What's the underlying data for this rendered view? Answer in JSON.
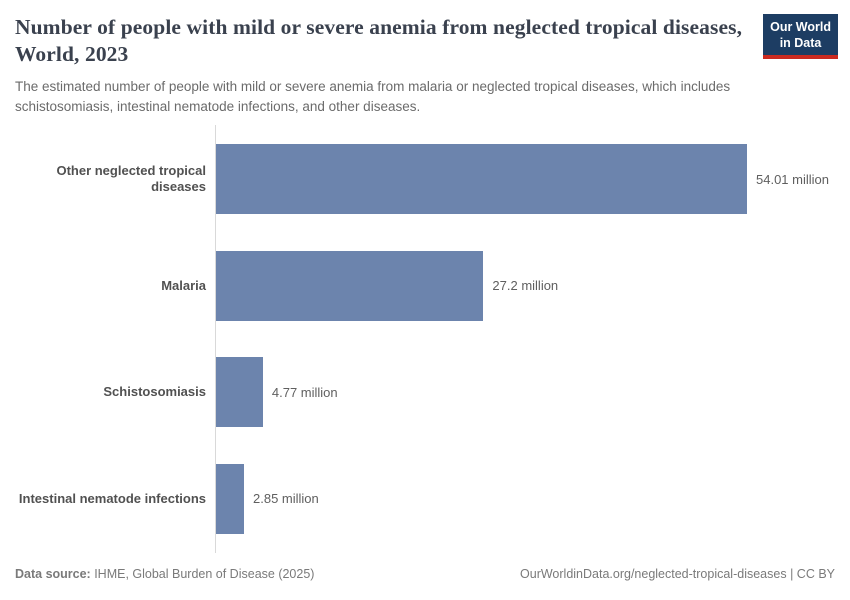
{
  "header": {
    "title": "Number of people with mild or severe anemia from neglected tropical diseases, World, 2023",
    "subtitle": "The estimated number of people with mild or severe anemia from malaria or neglected tropical diseases, which includes schistosomiasis, intestinal nematode infections, and other diseases.",
    "logo": {
      "line1": "Our World",
      "line2": "in Data"
    }
  },
  "chart_data": {
    "type": "bar",
    "orientation": "horizontal",
    "title": "Number of people with mild or severe anemia from neglected tropical diseases, World, 2023",
    "categories": [
      "Other neglected tropical diseases",
      "Malaria",
      "Schistosomiasis",
      "Intestinal nematode infections"
    ],
    "values": [
      54.01,
      27.2,
      4.77,
      2.85
    ],
    "value_labels": [
      "54.01 million",
      "27.2 million",
      "4.77 million",
      "2.85 million"
    ],
    "unit": "million",
    "xlim": [
      0,
      54.01
    ],
    "grid": false,
    "legend": "none",
    "bar_color": "#6c84ad"
  },
  "footer": {
    "data_source_label": "Data source:",
    "data_source": " IHME, Global Burden of Disease (2025)",
    "url": "OurWorldinData.org/neglected-tropical-diseases",
    "separator": " | ",
    "license": "CC BY"
  },
  "colors": {
    "bar": "#6c84ad",
    "title": "#3a414e",
    "subtitle": "#6b6b6b",
    "axis_line": "#d9d9d9",
    "logo_bg": "#1d3d63",
    "logo_accent": "#cb2a20"
  }
}
